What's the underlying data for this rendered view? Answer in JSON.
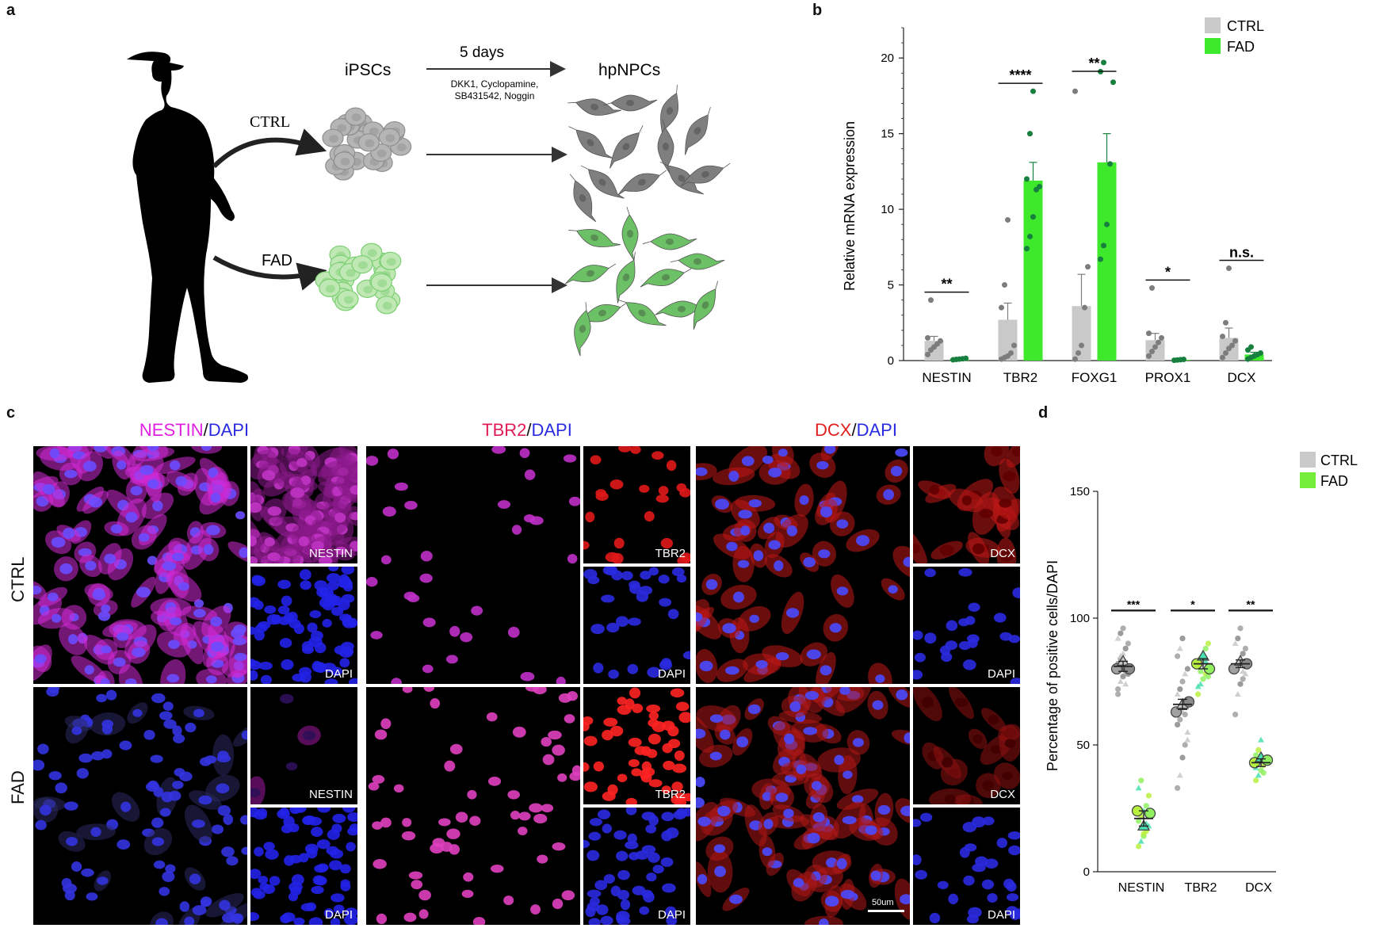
{
  "panels": {
    "a": "a",
    "b": "b",
    "c": "c",
    "d": "d"
  },
  "schematic": {
    "ipsc_label": "iPSCs",
    "npc_label": "hpNPCs",
    "duration": "5 days",
    "factors_line1": "DKK1, Cyclopamine,",
    "factors_line2": "SB431542, Noggin",
    "ctrl_label": "CTRL",
    "fad_label": "FAD",
    "colors": {
      "ctrl": "#8f8f8f",
      "fad": "#7ccf73",
      "silhouette": "#000000"
    }
  },
  "chart_b": {
    "type": "bar",
    "ylabel": "Relative mRNA expression",
    "categories": [
      "NESTIN",
      "TBR2",
      "FOXG1",
      "PROX1",
      "DCX"
    ],
    "yticks": [
      0,
      5,
      10,
      15,
      20
    ],
    "ylim": [
      0,
      22
    ],
    "legend": {
      "placement": "top-right",
      "items": [
        {
          "name": "CTRL",
          "color": "#c9c9c9"
        },
        {
          "name": "FAD",
          "color": "#3ee82a"
        }
      ]
    },
    "series": [
      {
        "name": "CTRL",
        "values": [
          1.3,
          2.7,
          3.6,
          1.35,
          1.5
        ],
        "errors": [
          0.3,
          1.1,
          2.1,
          0.45,
          0.65
        ],
        "points": [
          [
            0.4,
            0.7,
            0.9,
            1.1,
            1.3,
            1.5,
            4.0
          ],
          [
            0.1,
            0.2,
            0.3,
            0.5,
            1.0,
            3.5,
            5.0,
            9.3
          ],
          [
            0.1,
            0.5,
            1.0,
            3.5,
            6.2,
            17.8
          ],
          [
            0.3,
            0.6,
            0.9,
            1.2,
            1.5,
            1.8,
            4.8
          ],
          [
            0.2,
            0.5,
            0.8,
            1.0,
            1.3,
            1.6,
            2.5,
            6.1
          ]
        ],
        "color": "#c9c9c9",
        "point_color": "#7d7d7d"
      },
      {
        "name": "FAD",
        "values": [
          0.1,
          11.9,
          13.1,
          0.05,
          0.4
        ],
        "errors": [
          0.05,
          1.2,
          1.9,
          0.03,
          0.15
        ],
        "points": [
          [
            0.05,
            0.08,
            0.1,
            0.12,
            0.15
          ],
          [
            7.4,
            8.2,
            9.5,
            11.3,
            11.5,
            12.0,
            15.0,
            17.8
          ],
          [
            6.7,
            7.6,
            9.0,
            13.0,
            18.4,
            19.1,
            19.7
          ],
          [
            0.02,
            0.04,
            0.06,
            0.08
          ],
          [
            0.1,
            0.2,
            0.3,
            0.4,
            0.5,
            0.7,
            0.9
          ]
        ],
        "color": "#3ee82a",
        "point_color": "#17803e"
      }
    ],
    "significance": [
      "**",
      "****",
      "**",
      "*",
      "n.s."
    ]
  },
  "chart_d": {
    "type": "scatter",
    "ylabel": "Percentage of positive cells/DAPI",
    "categories": [
      "NESTIN",
      "TBR2",
      "DCX"
    ],
    "yticks": [
      0,
      50,
      100,
      150
    ],
    "ylim": [
      0,
      150
    ],
    "legend": {
      "placement": "top-right",
      "items": [
        {
          "name": "CTRL",
          "color": "#c9c9c9"
        },
        {
          "name": "FAD",
          "color": "#74ec3a"
        }
      ]
    },
    "means": {
      "CTRL": [
        81,
        66,
        82
      ],
      "FAD": [
        21,
        82,
        43
      ]
    },
    "errors": {
      "CTRL": [
        2,
        2,
        1.5
      ],
      "FAD": [
        3,
        2,
        1.5
      ]
    },
    "points": {
      "CTRL": [
        [
          72,
          75,
          77,
          79,
          80,
          82,
          84,
          86,
          88,
          90,
          92,
          94,
          96,
          74,
          78,
          70,
          85
        ],
        [
          33,
          38,
          45,
          50,
          55,
          58,
          60,
          63,
          66,
          68,
          70,
          72,
          75,
          78,
          80,
          85,
          88,
          92,
          62,
          52
        ],
        [
          62,
          70,
          74,
          76,
          78,
          80,
          82,
          84,
          86,
          88,
          90,
          92,
          96,
          79,
          83
        ]
      ],
      "FAD": [
        [
          10,
          12,
          14,
          16,
          18,
          20,
          22,
          24,
          26,
          30,
          33,
          36,
          15,
          19
        ],
        [
          70,
          74,
          76,
          78,
          80,
          82,
          84,
          86,
          88,
          90,
          73,
          79,
          85,
          83,
          77
        ],
        [
          36,
          38,
          40,
          42,
          44,
          46,
          48,
          52,
          39,
          43,
          41
        ]
      ]
    },
    "replicate_means": {
      "CTRL": [
        [
          80,
          83,
          80
        ],
        [
          63,
          66,
          67
        ],
        [
          80,
          83,
          82
        ]
      ],
      "FAD": [
        [
          24,
          18,
          23
        ],
        [
          82,
          85,
          80
        ],
        [
          43,
          45,
          44
        ]
      ]
    },
    "significance": [
      "***",
      "*",
      "**"
    ]
  },
  "panel_c": {
    "stains": [
      {
        "marker": "NESTIN",
        "sep": "/",
        "dapi": "DAPI",
        "marker_color": "#e020e0",
        "dapi_color": "#2a2ae0",
        "inset_label": "NESTIN"
      },
      {
        "marker": "TBR2",
        "sep": "/",
        "dapi": "DAPI",
        "marker_color": "#e01a55",
        "dapi_color": "#2a2ae0",
        "inset_label": "TBR2"
      },
      {
        "marker": "DCX",
        "sep": "/",
        "dapi": "DAPI",
        "marker_color": "#e02020",
        "dapi_color": "#2a2ae0",
        "inset_label": "DCX"
      }
    ],
    "row_labels": [
      "CTRL",
      "FAD"
    ],
    "dapi_label": "DAPI",
    "scale_bar": "50um"
  }
}
